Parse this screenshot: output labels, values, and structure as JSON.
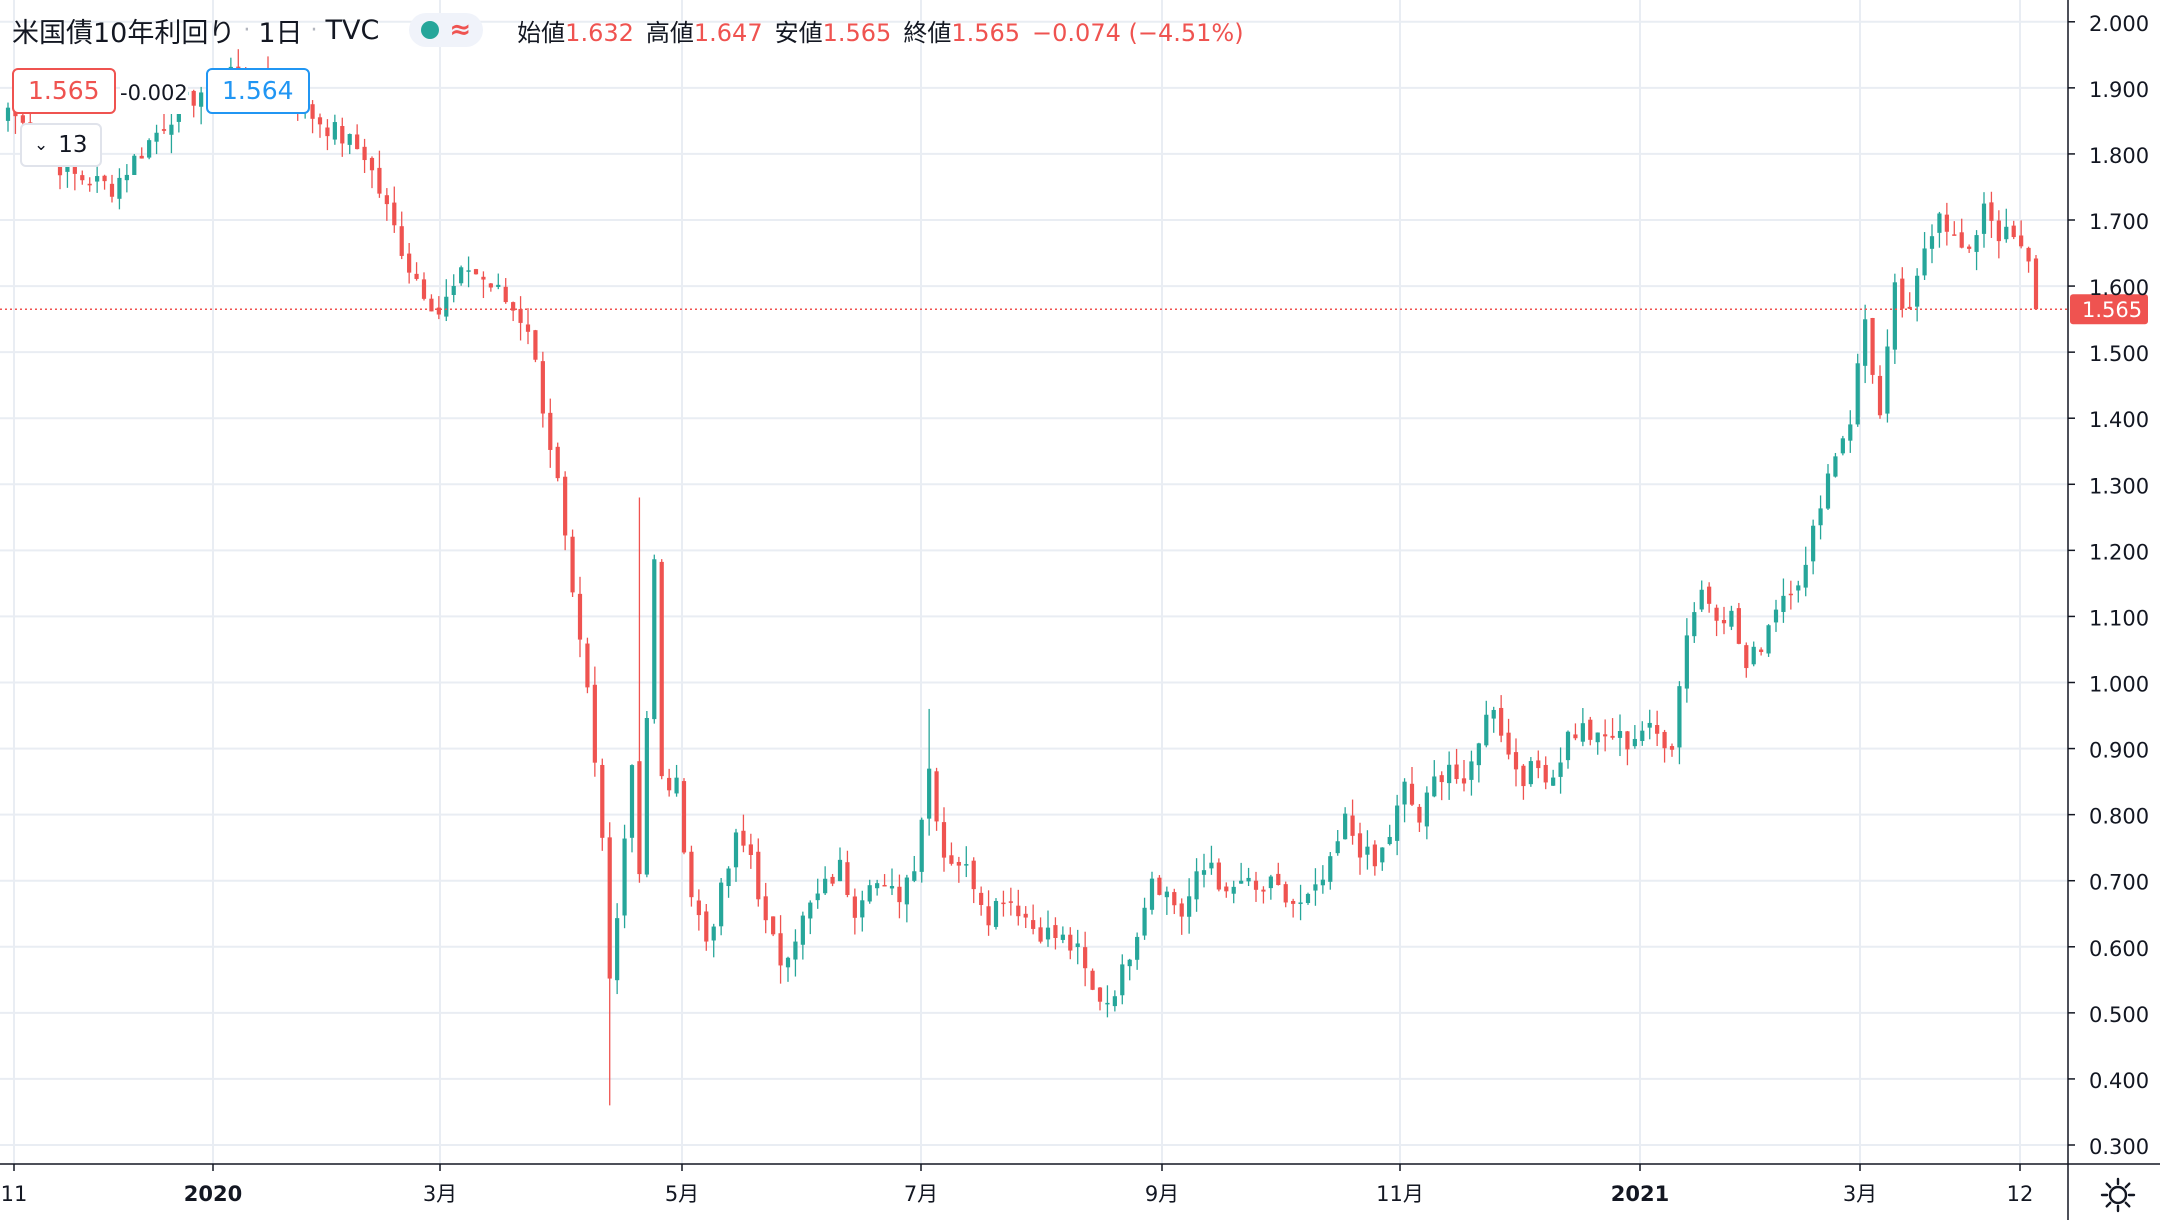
{
  "legend": {
    "title": "米国債10年利回り",
    "interval": "1日",
    "source": "TVC",
    "open_label": "始値",
    "open": "1.632",
    "high_label": "高値",
    "high": "1.647",
    "low_label": "安値",
    "low": "1.565",
    "close_label": "終値",
    "close": "1.565",
    "change": "−0.074 (−4.51%)"
  },
  "trade": {
    "bid": "1.565",
    "spread": "-0.002",
    "ask": "1.564"
  },
  "indicators_count": "13",
  "current_price_label": "1.565",
  "colors": {
    "up": "#26a69a",
    "down": "#ef5350",
    "grid": "#e9edf3",
    "bid": "#ef5350",
    "ask": "#2196f3"
  },
  "icons": {
    "settings": "gear-icon",
    "collapse": "chevron-down-icon"
  },
  "chart_data": {
    "type": "candlestick",
    "ylim": [
      0.27,
      2.05
    ],
    "yticks": [
      "2.000",
      "1.900",
      "1.800",
      "1.700",
      "1.600",
      "1.500",
      "1.400",
      "1.300",
      "1.200",
      "1.100",
      "1.000",
      "0.900",
      "0.800",
      "0.700",
      "0.600",
      "0.500",
      "0.400",
      "0.300"
    ],
    "xticks": [
      {
        "label": "11",
        "bold": false
      },
      {
        "label": "2020",
        "bold": true
      },
      {
        "label": "3月",
        "bold": false
      },
      {
        "label": "5月",
        "bold": false
      },
      {
        "label": "7月",
        "bold": false
      },
      {
        "label": "9月",
        "bold": false
      },
      {
        "label": "11月",
        "bold": false
      },
      {
        "label": "2021",
        "bold": true
      },
      {
        "label": "3月",
        "bold": false
      },
      {
        "label": "12",
        "bold": false
      }
    ],
    "current_price": 1.565,
    "close_path": [
      [
        0,
        1.87
      ],
      [
        8,
        1.77
      ],
      [
        14,
        1.75
      ],
      [
        22,
        1.86
      ],
      [
        30,
        1.93
      ],
      [
        36,
        1.9
      ],
      [
        42,
        1.85
      ],
      [
        48,
        1.8
      ],
      [
        54,
        1.63
      ],
      [
        58,
        1.56
      ],
      [
        62,
        1.63
      ],
      [
        66,
        1.59
      ],
      [
        70,
        1.54
      ],
      [
        74,
        1.3
      ],
      [
        76,
        1.12
      ],
      [
        78,
        0.98
      ],
      [
        80,
        0.76
      ],
      [
        81,
        0.55
      ],
      [
        82,
        0.66
      ],
      [
        84,
        0.88
      ],
      [
        85,
        0.72
      ],
      [
        87,
        1.18
      ],
      [
        88,
        0.85
      ],
      [
        90,
        0.84
      ],
      [
        92,
        0.68
      ],
      [
        94,
        0.61
      ],
      [
        96,
        0.68
      ],
      [
        98,
        0.76
      ],
      [
        100,
        0.74
      ],
      [
        102,
        0.63
      ],
      [
        104,
        0.58
      ],
      [
        106,
        0.62
      ],
      [
        108,
        0.66
      ],
      [
        110,
        0.69
      ],
      [
        112,
        0.72
      ],
      [
        114,
        0.66
      ],
      [
        116,
        0.71
      ],
      [
        118,
        0.68
      ],
      [
        120,
        0.68
      ],
      [
        122,
        0.73
      ],
      [
        124,
        0.87
      ],
      [
        126,
        0.74
      ],
      [
        128,
        0.73
      ],
      [
        130,
        0.7
      ],
      [
        132,
        0.65
      ],
      [
        134,
        0.68
      ],
      [
        136,
        0.66
      ],
      [
        138,
        0.63
      ],
      [
        140,
        0.62
      ],
      [
        142,
        0.61
      ],
      [
        144,
        0.59
      ],
      [
        146,
        0.53
      ],
      [
        148,
        0.52
      ],
      [
        150,
        0.56
      ],
      [
        152,
        0.63
      ],
      [
        154,
        0.71
      ],
      [
        156,
        0.68
      ],
      [
        158,
        0.65
      ],
      [
        160,
        0.7
      ],
      [
        162,
        0.73
      ],
      [
        164,
        0.67
      ],
      [
        166,
        0.7
      ],
      [
        168,
        0.68
      ],
      [
        170,
        0.69
      ],
      [
        172,
        0.67
      ],
      [
        174,
        0.66
      ],
      [
        176,
        0.68
      ],
      [
        178,
        0.72
      ],
      [
        180,
        0.79
      ],
      [
        182,
        0.75
      ],
      [
        184,
        0.72
      ],
      [
        186,
        0.77
      ],
      [
        188,
        0.84
      ],
      [
        190,
        0.79
      ],
      [
        192,
        0.85
      ],
      [
        194,
        0.88
      ],
      [
        196,
        0.83
      ],
      [
        198,
        0.92
      ],
      [
        200,
        0.97
      ],
      [
        202,
        0.89
      ],
      [
        204,
        0.86
      ],
      [
        206,
        0.87
      ],
      [
        208,
        0.86
      ],
      [
        210,
        0.92
      ],
      [
        212,
        0.93
      ],
      [
        214,
        0.91
      ],
      [
        216,
        0.92
      ],
      [
        218,
        0.91
      ],
      [
        220,
        0.93
      ],
      [
        222,
        0.92
      ],
      [
        224,
        0.91
      ],
      [
        226,
        1.08
      ],
      [
        228,
        1.14
      ],
      [
        230,
        1.11
      ],
      [
        232,
        1.1
      ],
      [
        234,
        1.02
      ],
      [
        236,
        1.06
      ],
      [
        238,
        1.12
      ],
      [
        240,
        1.15
      ],
      [
        242,
        1.17
      ],
      [
        244,
        1.28
      ],
      [
        246,
        1.35
      ],
      [
        248,
        1.4
      ],
      [
        250,
        1.55
      ],
      [
        252,
        1.4
      ],
      [
        254,
        1.59
      ],
      [
        256,
        1.55
      ],
      [
        258,
        1.66
      ],
      [
        260,
        1.72
      ],
      [
        262,
        1.67
      ],
      [
        264,
        1.64
      ],
      [
        266,
        1.73
      ],
      [
        268,
        1.68
      ],
      [
        270,
        1.67
      ],
      [
        272,
        1.63
      ],
      [
        273,
        1.565
      ]
    ],
    "candle_count": 274
  }
}
